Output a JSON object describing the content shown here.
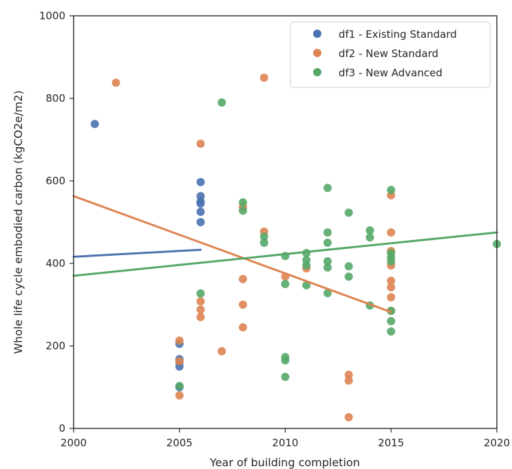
{
  "chart_data": {
    "type": "scatter",
    "xlabel": "Year of building completion",
    "ylabel": "Whole life cycle embodied carbon (kgCO2e/m2)",
    "xlim": [
      2000,
      2020
    ],
    "ylim": [
      0,
      1000
    ],
    "x_ticks": [
      "2000",
      "2005",
      "2010",
      "2015",
      "2020"
    ],
    "y_ticks": [
      "0",
      "200",
      "400",
      "600",
      "800",
      "1000"
    ],
    "grid": false,
    "legend_position": "top-right",
    "series": [
      {
        "name": "df1 - Existing Standard",
        "color": "#4c72b0",
        "points": [
          [
            2001,
            738
          ],
          [
            2005,
            205
          ],
          [
            2005,
            168
          ],
          [
            2005,
            160
          ],
          [
            2005,
            150
          ],
          [
            2005,
            100
          ],
          [
            2006,
            597
          ],
          [
            2006,
            563
          ],
          [
            2006,
            550
          ],
          [
            2006,
            545
          ],
          [
            2006,
            525
          ],
          [
            2006,
            500
          ]
        ],
        "trendline": {
          "x": [
            2000,
            2006
          ],
          "y": [
            416,
            433
          ]
        }
      },
      {
        "name": "df2 - New Standard",
        "color": "#dd8452",
        "points": [
          [
            2002,
            838
          ],
          [
            2005,
            213
          ],
          [
            2005,
            163
          ],
          [
            2005,
            80
          ],
          [
            2006,
            690
          ],
          [
            2006,
            308
          ],
          [
            2006,
            288
          ],
          [
            2006,
            270
          ],
          [
            2007,
            187
          ],
          [
            2008,
            537
          ],
          [
            2008,
            362
          ],
          [
            2008,
            300
          ],
          [
            2008,
            245
          ],
          [
            2009,
            850
          ],
          [
            2009,
            477
          ],
          [
            2010,
            368
          ],
          [
            2011,
            388
          ],
          [
            2013,
            130
          ],
          [
            2013,
            116
          ],
          [
            2013,
            27
          ],
          [
            2015,
            565
          ],
          [
            2015,
            475
          ],
          [
            2015,
            430
          ],
          [
            2015,
            395
          ],
          [
            2015,
            358
          ],
          [
            2015,
            342
          ],
          [
            2015,
            318
          ],
          [
            2015,
            285
          ]
        ],
        "trendline": {
          "x": [
            2000,
            2015
          ],
          "y": [
            563,
            282
          ]
        }
      },
      {
        "name": "df3 - New Advanced",
        "color": "#55a868",
        "points": [
          [
            2005,
            103
          ],
          [
            2006,
            327
          ],
          [
            2007,
            790
          ],
          [
            2008,
            548
          ],
          [
            2008,
            528
          ],
          [
            2009,
            465
          ],
          [
            2009,
            450
          ],
          [
            2010,
            418
          ],
          [
            2010,
            350
          ],
          [
            2010,
            173
          ],
          [
            2010,
            165
          ],
          [
            2010,
            125
          ],
          [
            2011,
            425
          ],
          [
            2011,
            408
          ],
          [
            2011,
            395
          ],
          [
            2011,
            347
          ],
          [
            2012,
            583
          ],
          [
            2012,
            475
          ],
          [
            2012,
            450
          ],
          [
            2012,
            405
          ],
          [
            2012,
            390
          ],
          [
            2012,
            328
          ],
          [
            2013,
            523
          ],
          [
            2013,
            393
          ],
          [
            2013,
            368
          ],
          [
            2014,
            480
          ],
          [
            2014,
            463
          ],
          [
            2014,
            298
          ],
          [
            2015,
            578
          ],
          [
            2015,
            425
          ],
          [
            2015,
            415
          ],
          [
            2015,
            405
          ],
          [
            2015,
            285
          ],
          [
            2015,
            260
          ],
          [
            2015,
            235
          ],
          [
            2020,
            447
          ]
        ],
        "trendline": {
          "x": [
            2000,
            2020
          ],
          "y": [
            370,
            475
          ]
        }
      }
    ]
  }
}
